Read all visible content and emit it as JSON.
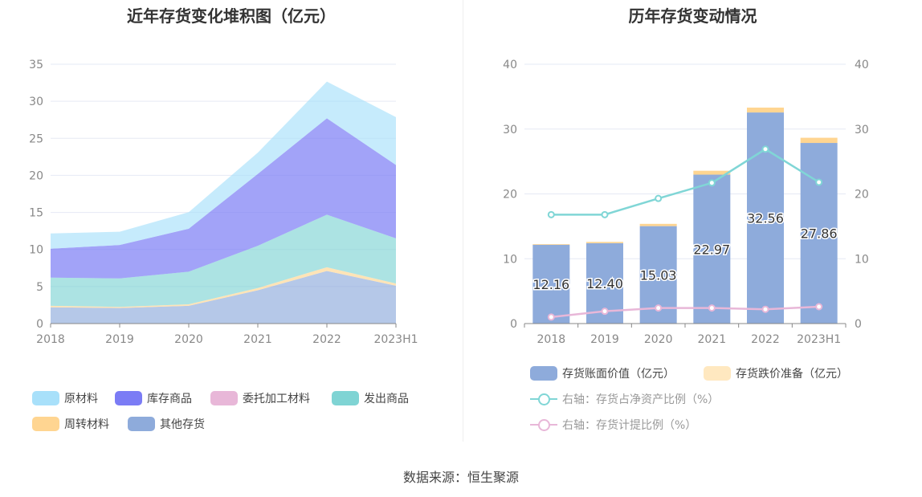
{
  "chart_data": [
    {
      "type": "area",
      "stacked": true,
      "title": "近年存货变化堆积图（亿元）",
      "categories": [
        "2018",
        "2019",
        "2020",
        "2021",
        "2022",
        "2023H1"
      ],
      "ylim": [
        0,
        35
      ],
      "yticks": [
        0,
        5,
        10,
        15,
        20,
        25,
        30,
        35
      ],
      "series": [
        {
          "name": "其他存货",
          "color": "#8eabdb",
          "values": [
            2.2,
            2.1,
            2.4,
            4.5,
            7.1,
            5.1
          ]
        },
        {
          "name": "周转材料",
          "color": "#ffd591",
          "values": [
            0.2,
            0.15,
            0.2,
            0.3,
            0.5,
            0.3
          ]
        },
        {
          "name": "委托加工材料",
          "color": "#e8b7d8",
          "values": [
            0.0,
            0.0,
            0.0,
            0.0,
            0.0,
            0.0
          ]
        },
        {
          "name": "发出商品",
          "color": "#7fd4d4",
          "values": [
            3.8,
            3.85,
            4.4,
            5.7,
            7.1,
            6.1
          ]
        },
        {
          "name": "库存商品",
          "color": "#7b7cf5",
          "values": [
            3.9,
            4.5,
            5.8,
            9.7,
            13.0,
            9.9
          ]
        },
        {
          "name": "原材料",
          "color": "#a8e0fa",
          "values": [
            2.06,
            1.8,
            2.23,
            2.87,
            4.96,
            6.46
          ]
        }
      ],
      "legend_order": [
        "原材料",
        "库存商品",
        "委托加工材料",
        "发出商品",
        "周转材料",
        "其他存货"
      ],
      "legend": "bottom"
    },
    {
      "type": "bar+line",
      "title": "历年存货变动情况",
      "categories": [
        "2018",
        "2019",
        "2020",
        "2021",
        "2022",
        "2023H1"
      ],
      "ylim": [
        0,
        40
      ],
      "y2lim": [
        0,
        40
      ],
      "yticks": [
        0,
        10,
        20,
        30,
        40
      ],
      "bars": [
        {
          "name": "存货账面价值（亿元）",
          "color": "#8eabdb",
          "values": [
            12.16,
            12.4,
            15.03,
            22.97,
            32.56,
            27.86
          ],
          "labels": [
            "12.16",
            "12.40",
            "15.03",
            "22.97",
            "32.56",
            "27.86"
          ]
        },
        {
          "name": "存货跌价准备（亿元）",
          "color": "#ffd591",
          "values": [
            0.1,
            0.2,
            0.35,
            0.6,
            0.75,
            0.8
          ]
        }
      ],
      "lines": [
        {
          "name": "右轴：存货占净资产比例（%）",
          "color": "#80d6d6",
          "values": [
            16.8,
            16.8,
            19.3,
            21.7,
            26.9,
            21.8
          ]
        },
        {
          "name": "右轴：存货计提比例（%）",
          "color": "#e8b7d8",
          "values": [
            1.0,
            1.9,
            2.4,
            2.4,
            2.2,
            2.6
          ]
        }
      ],
      "legend": "bottom"
    }
  ],
  "source": "数据来源：恒生聚源"
}
